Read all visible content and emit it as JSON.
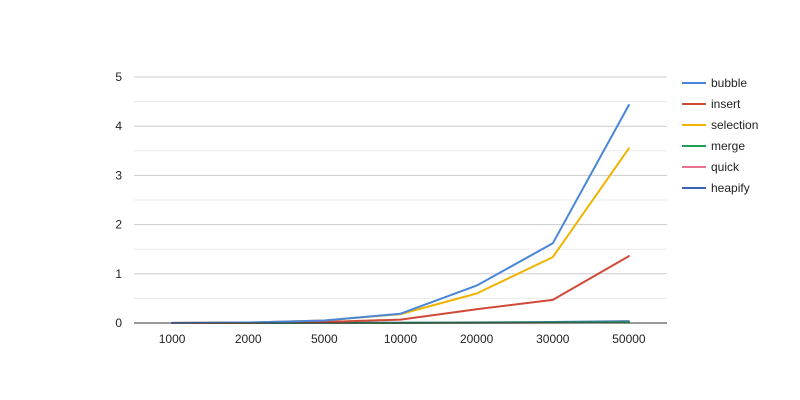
{
  "chart_data": {
    "type": "line",
    "title": "",
    "xlabel": "",
    "ylabel": "",
    "categories": [
      "1000",
      "2000",
      "5000",
      "10000",
      "20000",
      "30000",
      "50000"
    ],
    "ylim": [
      0,
      5
    ],
    "yticks": [
      0,
      1,
      2,
      3,
      4,
      5
    ],
    "minor_gridlines": true,
    "legend_position": "right",
    "series": [
      {
        "name": "bubble",
        "color": "#4a86d8",
        "values": [
          0.002,
          0.01,
          0.05,
          0.19,
          0.76,
          1.62,
          4.43
        ]
      },
      {
        "name": "insert",
        "color": "#d04a3a",
        "values": [
          0.001,
          0.004,
          0.02,
          0.07,
          0.28,
          0.47,
          1.36
        ]
      },
      {
        "name": "selection",
        "color": "#f0b400",
        "values": [
          0.002,
          0.01,
          0.05,
          0.18,
          0.6,
          1.34,
          3.55
        ]
      },
      {
        "name": "merge",
        "color": "#1f9e5a",
        "values": [
          0.001,
          0.001,
          0.002,
          0.003,
          0.006,
          0.01,
          0.015
        ]
      },
      {
        "name": "quick",
        "color": "#e8748e",
        "values": [
          0.001,
          0.001,
          0.002,
          0.003,
          0.005,
          0.008,
          0.012
        ]
      },
      {
        "name": "heapify",
        "color": "#3b62b0",
        "values": [
          0.001,
          0.002,
          0.004,
          0.006,
          0.012,
          0.02,
          0.035
        ]
      }
    ]
  }
}
